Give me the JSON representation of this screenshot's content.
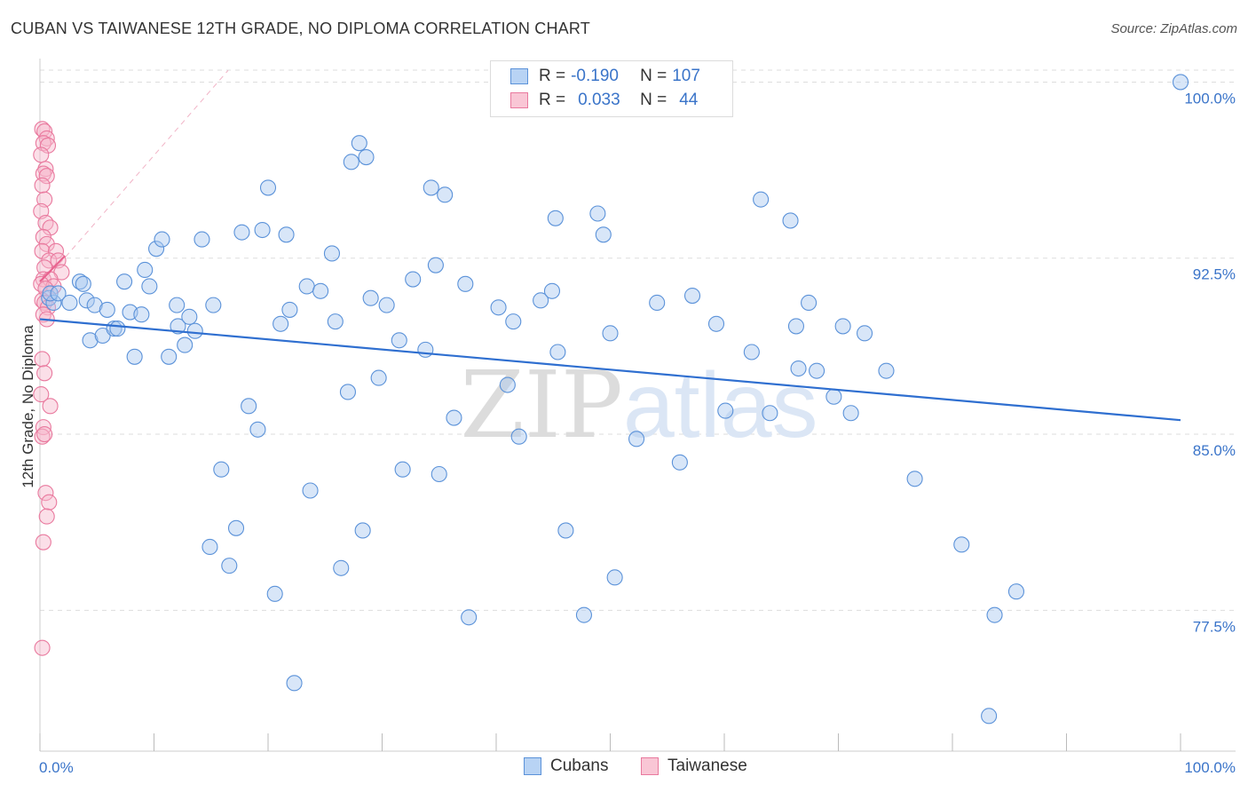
{
  "chart_data": {
    "type": "scatter",
    "title": "CUBAN VS TAIWANESE 12TH GRADE, NO DIPLOMA CORRELATION CHART",
    "source": "Source: ZipAtlas.com",
    "watermark": "ZIPatlas",
    "xlabel": "",
    "ylabel": "12th Grade, No Diploma",
    "xlim": [
      0,
      100
    ],
    "ylim": [
      71.5,
      101.0
    ],
    "x_tick_labels": [
      "0.0%",
      "100.0%"
    ],
    "y_ticks": [
      77.5,
      85.0,
      92.5,
      100.0
    ],
    "y_tick_labels": [
      "77.5%",
      "85.0%",
      "92.5%",
      "100.0%"
    ],
    "grid": true,
    "legend": {
      "position": "top-center",
      "entries": [
        {
          "name": "Cubans",
          "r_label": "R =",
          "r": "-0.190",
          "n_label": "N =",
          "n": "107"
        },
        {
          "name": "Taiwanese",
          "r_label": "R =",
          "r": "0.033",
          "n_label": "N =",
          "n": "44"
        }
      ]
    },
    "colors": {
      "cubans_fill": "#a9c8f0",
      "cubans_stroke": "#5b92d9",
      "cubans_line": "#2f6fd0",
      "taiwanese_fill": "#f6b8cb",
      "taiwanese_stroke": "#e9799e",
      "taiwanese_line": "#e8638f",
      "tick_label": "#3a74c9",
      "grid": "#dddddd"
    },
    "series": [
      {
        "name": "Cubans",
        "trend": {
          "x": [
            0,
            100
          ],
          "y": [
            89.9,
            85.6
          ]
        },
        "points": [
          [
            0.8,
            90.8
          ],
          [
            1.2,
            90.6
          ],
          [
            0.9,
            91.0
          ],
          [
            1.6,
            91.0
          ],
          [
            3.5,
            91.5
          ],
          [
            3.8,
            91.4
          ],
          [
            2.6,
            90.6
          ],
          [
            4.1,
            90.7
          ],
          [
            4.8,
            90.5
          ],
          [
            5.9,
            90.3
          ],
          [
            4.4,
            89.0
          ],
          [
            5.5,
            89.2
          ],
          [
            6.5,
            89.5
          ],
          [
            6.8,
            89.5
          ],
          [
            7.4,
            91.5
          ],
          [
            7.9,
            90.2
          ],
          [
            8.9,
            90.1
          ],
          [
            8.3,
            88.3
          ],
          [
            9.2,
            92.0
          ],
          [
            9.6,
            91.3
          ],
          [
            10.2,
            92.9
          ],
          [
            10.7,
            93.3
          ],
          [
            11.3,
            88.3
          ],
          [
            12.0,
            90.5
          ],
          [
            12.1,
            89.6
          ],
          [
            12.7,
            88.8
          ],
          [
            13.1,
            90.0
          ],
          [
            13.6,
            89.4
          ],
          [
            14.2,
            93.3
          ],
          [
            15.2,
            90.5
          ],
          [
            15.9,
            83.5
          ],
          [
            14.9,
            80.2
          ],
          [
            16.6,
            79.4
          ],
          [
            17.2,
            81.0
          ],
          [
            17.7,
            93.6
          ],
          [
            18.3,
            86.2
          ],
          [
            19.1,
            85.2
          ],
          [
            19.5,
            93.7
          ],
          [
            20.0,
            95.5
          ],
          [
            20.6,
            78.2
          ],
          [
            21.1,
            89.7
          ],
          [
            21.6,
            93.5
          ],
          [
            21.9,
            90.3
          ],
          [
            22.3,
            74.4
          ],
          [
            23.4,
            91.3
          ],
          [
            23.7,
            82.6
          ],
          [
            24.6,
            91.1
          ],
          [
            25.6,
            92.7
          ],
          [
            25.9,
            89.8
          ],
          [
            26.4,
            79.3
          ],
          [
            27.0,
            86.8
          ],
          [
            27.3,
            96.6
          ],
          [
            28.0,
            97.4
          ],
          [
            28.3,
            80.9
          ],
          [
            28.6,
            96.8
          ],
          [
            29.0,
            90.8
          ],
          [
            29.7,
            87.4
          ],
          [
            30.4,
            90.5
          ],
          [
            31.5,
            89.0
          ],
          [
            31.8,
            83.5
          ],
          [
            32.7,
            91.6
          ],
          [
            33.8,
            88.6
          ],
          [
            34.3,
            95.5
          ],
          [
            34.7,
            92.2
          ],
          [
            35.0,
            83.3
          ],
          [
            35.5,
            95.2
          ],
          [
            36.3,
            85.7
          ],
          [
            37.3,
            91.4
          ],
          [
            37.6,
            77.2
          ],
          [
            40.2,
            90.4
          ],
          [
            41.0,
            87.1
          ],
          [
            41.5,
            89.8
          ],
          [
            42.0,
            84.9
          ],
          [
            43.9,
            90.7
          ],
          [
            44.9,
            91.1
          ],
          [
            45.2,
            94.2
          ],
          [
            45.4,
            88.5
          ],
          [
            46.1,
            80.9
          ],
          [
            47.7,
            77.3
          ],
          [
            48.9,
            94.4
          ],
          [
            49.4,
            93.5
          ],
          [
            50.0,
            89.3
          ],
          [
            50.4,
            78.9
          ],
          [
            52.3,
            84.8
          ],
          [
            54.1,
            90.6
          ],
          [
            56.1,
            83.8
          ],
          [
            57.2,
            90.9
          ],
          [
            59.3,
            89.7
          ],
          [
            60.1,
            86.0
          ],
          [
            62.4,
            88.5
          ],
          [
            63.2,
            95.0
          ],
          [
            64.0,
            85.9
          ],
          [
            65.8,
            94.1
          ],
          [
            66.3,
            89.6
          ],
          [
            66.5,
            87.8
          ],
          [
            67.4,
            90.6
          ],
          [
            68.1,
            87.7
          ],
          [
            69.6,
            86.6
          ],
          [
            70.4,
            89.6
          ],
          [
            71.1,
            85.9
          ],
          [
            72.3,
            89.3
          ],
          [
            74.2,
            87.7
          ],
          [
            76.7,
            83.1
          ],
          [
            80.8,
            80.3
          ],
          [
            83.2,
            73.0
          ],
          [
            83.7,
            77.3
          ],
          [
            85.6,
            78.3
          ],
          [
            100.0,
            100.0
          ]
        ]
      },
      {
        "name": "Taiwanese",
        "trend": {
          "x": [
            0,
            2.2
          ],
          "y": [
            91.5,
            92.6
          ]
        },
        "points": [
          [
            0.2,
            98.0
          ],
          [
            0.4,
            97.9
          ],
          [
            0.6,
            97.6
          ],
          [
            0.3,
            97.4
          ],
          [
            0.7,
            97.3
          ],
          [
            0.1,
            96.9
          ],
          [
            0.5,
            96.3
          ],
          [
            0.3,
            96.1
          ],
          [
            0.6,
            96.0
          ],
          [
            0.2,
            95.6
          ],
          [
            0.4,
            95.0
          ],
          [
            0.1,
            94.5
          ],
          [
            0.5,
            94.0
          ],
          [
            0.9,
            93.8
          ],
          [
            0.3,
            93.4
          ],
          [
            0.6,
            93.1
          ],
          [
            0.2,
            92.8
          ],
          [
            1.4,
            92.8
          ],
          [
            0.8,
            92.4
          ],
          [
            1.6,
            92.4
          ],
          [
            0.4,
            92.1
          ],
          [
            1.9,
            91.9
          ],
          [
            0.3,
            91.6
          ],
          [
            0.9,
            91.6
          ],
          [
            0.1,
            91.4
          ],
          [
            1.2,
            91.3
          ],
          [
            0.5,
            91.2
          ],
          [
            0.2,
            90.7
          ],
          [
            0.4,
            90.6
          ],
          [
            0.7,
            90.4
          ],
          [
            0.3,
            90.1
          ],
          [
            0.2,
            88.2
          ],
          [
            0.4,
            87.6
          ],
          [
            0.1,
            86.7
          ],
          [
            0.9,
            86.2
          ],
          [
            0.3,
            85.3
          ],
          [
            0.2,
            84.9
          ],
          [
            0.5,
            82.5
          ],
          [
            0.8,
            82.1
          ],
          [
            0.6,
            81.5
          ],
          [
            0.3,
            80.4
          ],
          [
            0.2,
            75.9
          ],
          [
            0.4,
            85.0
          ],
          [
            0.6,
            89.9
          ]
        ]
      }
    ]
  },
  "legend_bottom": [
    "Cubans",
    "Taiwanese"
  ]
}
